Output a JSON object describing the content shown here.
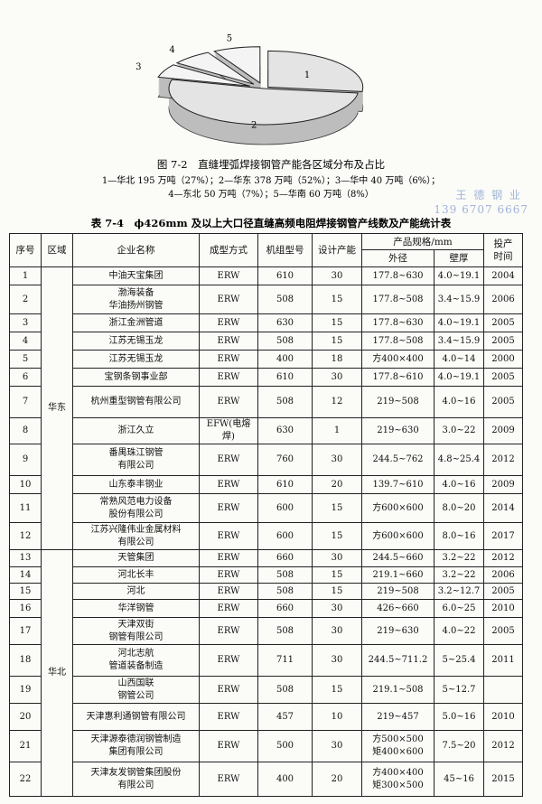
{
  "figure": {
    "slices": [
      {
        "label": "1",
        "value": 27
      },
      {
        "label": "2",
        "value": 52
      },
      {
        "label": "3",
        "value": 6
      },
      {
        "label": "4",
        "value": 7
      },
      {
        "label": "5",
        "value": 8
      }
    ],
    "caption": "图 7-2　直缝埋弧焊接钢管产能各区域分布及占比",
    "legend": [
      "1—华北 195 万吨（27%）；2—华东 378 万吨（52%）；3—华中 40 万吨（6%）；",
      "4—东北 50 万吨（7%）；5—华南 60 万吨（8%）"
    ]
  },
  "watermark": [
    "王 德 钢 业",
    "139 6707 6667"
  ],
  "table": {
    "title": "表 7-4　ϕ426mm 及以上大口径直缝高频电阻焊接钢管产线数及产能统计表",
    "header": [
      "序号",
      "区域",
      "企业名称",
      "成型方式",
      "机组型号",
      "设计产能",
      "产品规格/mm",
      "投产时间"
    ],
    "subheader": [
      "外径",
      "壁厚"
    ],
    "regions": [
      {
        "name": "华东",
        "rows": [
          [
            1,
            "中油天宝集团",
            "ERW",
            610,
            30,
            "177.8~630",
            "4.0~19.1",
            2004
          ],
          [
            2,
            "渤海装备\n华油扬州钢管",
            "ERW",
            508,
            15,
            "177.8~508",
            "3.4~15.9",
            2006
          ],
          [
            3,
            "浙江金洲管道",
            "ERW",
            630,
            15,
            "177.8~630",
            "4.0~19.1",
            2005
          ],
          [
            4,
            "江苏无锡玉龙",
            "ERW",
            508,
            15,
            "177.8~508",
            "3.4~15.9",
            2005
          ],
          [
            5,
            "江苏无锡玉龙",
            "ERW",
            400,
            18,
            "方400×400",
            "4.0~14",
            2000
          ],
          [
            6,
            "宝钢条钢事业部",
            "ERW",
            610,
            30,
            "177.8~610",
            "4.0~19.1",
            2005
          ],
          [
            7,
            "杭州重型钢管有限公司",
            "ERW",
            508,
            12,
            "219~508",
            "4.0~16",
            2005
          ],
          [
            8,
            "浙江久立",
            "EFW(电熔焊)",
            630,
            1,
            "219~630",
            "3.0~22",
            2009
          ],
          [
            9,
            "番禺珠江钢管\n有限公司",
            "ERW",
            760,
            30,
            "244.5~762",
            "4.8~25.4",
            2012
          ],
          [
            10,
            "山东泰丰钢业",
            "ERW",
            610,
            20,
            "139.7~610",
            "4.0~16",
            2009
          ],
          [
            11,
            "常熟风范电力设备\n股份有限公司",
            "ERW",
            600,
            15,
            "方600×600",
            "8.0~20",
            2014
          ],
          [
            12,
            "江苏兴隆伟业金属材料\n有限公司",
            "ERW",
            600,
            15,
            "方600×600",
            "8.0~16",
            2017
          ]
        ]
      },
      {
        "name": "华北",
        "rows": [
          [
            13,
            "天管集团",
            "ERW",
            660,
            30,
            "244.5~660",
            "3.2~22",
            2012
          ],
          [
            14,
            "河北长丰",
            "ERW",
            508,
            15,
            "219.1~660",
            "3.2~22",
            2006
          ],
          [
            15,
            "河北",
            "ERW",
            508,
            15,
            "219~508",
            "3.2~12.7",
            2005
          ],
          [
            16,
            "华洋钢管",
            "ERW",
            660,
            30,
            "426~660",
            "6.0~25",
            2010
          ],
          [
            17,
            "天津双街\n钢管有限公司",
            "ERW",
            508,
            30,
            "219~630",
            "4.0~22",
            2005
          ],
          [
            18,
            "河北志航\n管道装备制造",
            "ERW",
            711,
            30,
            "244.5~711.2",
            "5~25.4",
            2011
          ],
          [
            19,
            "山西国联\n钢管公司",
            "ERW",
            508,
            15,
            "219.1~508",
            "5~12.7",
            null
          ],
          [
            20,
            "天津惠利通钢管有限公司",
            "ERW",
            457,
            10,
            "219~457",
            "5.0~16",
            2010
          ],
          [
            21,
            "天津源泰德润钢管制造\n集团有限公司",
            "ERW",
            500,
            30,
            "方500×500\n矩400×600",
            "7.5~20",
            2012
          ],
          [
            22,
            "天津友发钢管集团股份\n有限公司",
            "ERW",
            400,
            20,
            "方400×400\n矩300×500",
            "45~16",
            2015
          ]
        ]
      }
    ]
  }
}
